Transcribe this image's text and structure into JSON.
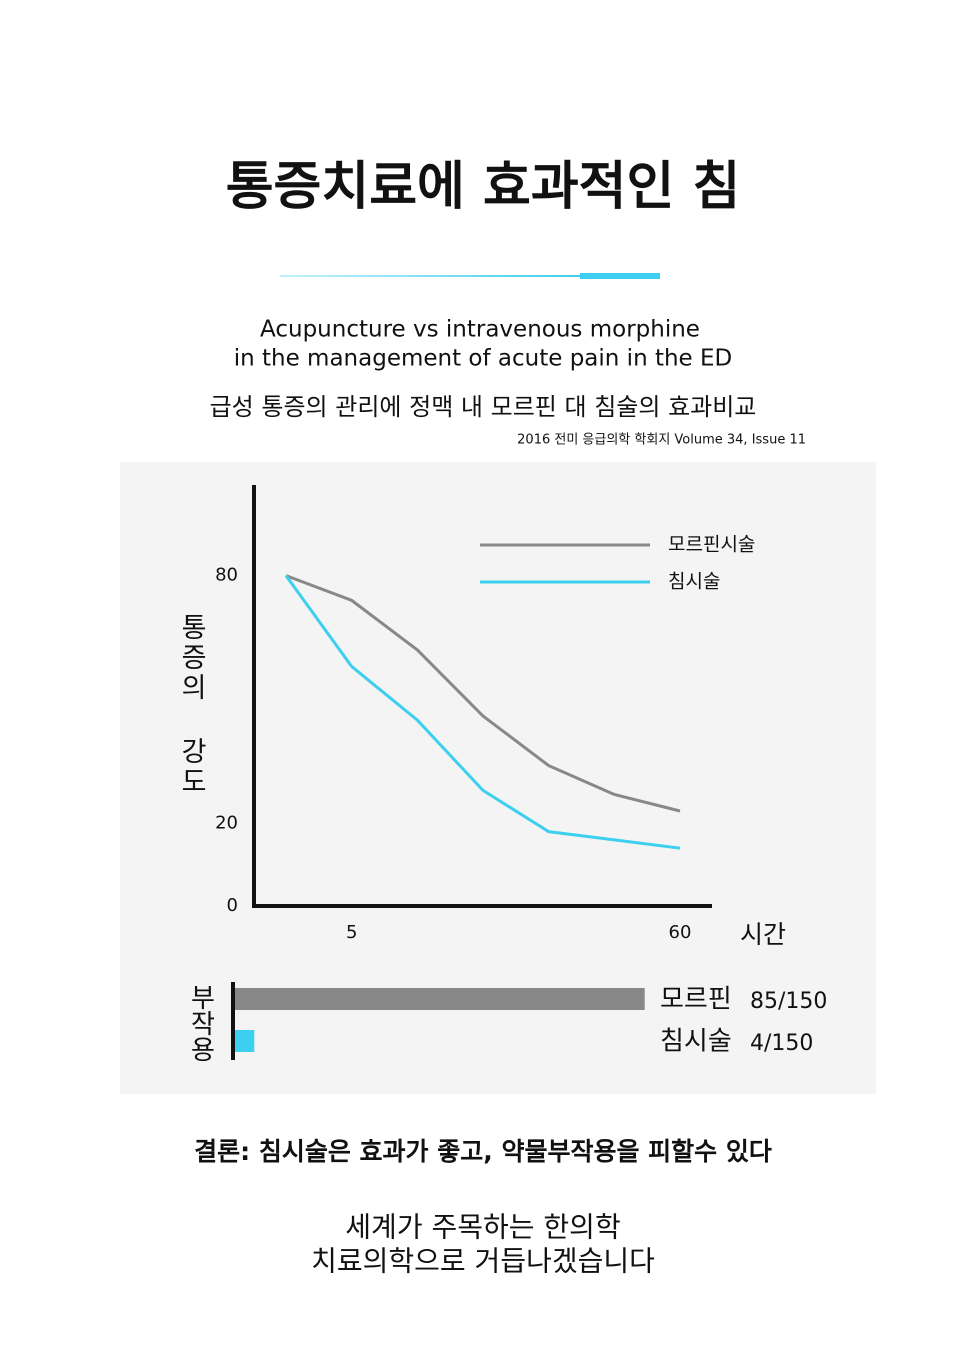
{
  "header": {
    "title": "통증치료에 효과적인 침",
    "subtitle_en": [
      "Acupuncture vs intravenous morphine",
      "in the management of acute pain in the ED"
    ],
    "subtitle_ko": "급성 통증의 관리에 정맥 내 모르핀 대 침술의 효과비교",
    "source": "2016 전미 응급의학 학회지 Volume 34, Issue 11"
  },
  "chart_data": [
    {
      "type": "line",
      "y_label": "통증의 강도",
      "x_label": "시간",
      "categories": [
        null,
        "5",
        null,
        null,
        null,
        null,
        "60"
      ],
      "ylim": [
        0,
        100
      ],
      "yticks": [
        0,
        20,
        80
      ],
      "grid": false,
      "legend": "upper right",
      "series": [
        {
          "name": "모르핀시술",
          "color": "#888888",
          "values": [
            80,
            74,
            62,
            46,
            34,
            27,
            23
          ]
        },
        {
          "name": "침시술",
          "color": "#3ccfef",
          "values": [
            80,
            58,
            45,
            28,
            18,
            16,
            14
          ]
        }
      ]
    },
    {
      "type": "hbar",
      "y_label": "부작용",
      "categories": [
        "모르핀",
        "침시술"
      ],
      "values": [
        85,
        4
      ],
      "value_labels": [
        "85/150",
        "4/150"
      ],
      "colors": [
        "#888888",
        "#3ccfef"
      ],
      "xlim": [
        0,
        150
      ]
    }
  ],
  "footer": {
    "conclusion": "결론: 침시술은 효과가 좋고, 약물부작용을 피할수 있다",
    "closing": [
      "세계가 주목하는 한의학",
      "치료의학으로 거듭나겠습니다"
    ]
  }
}
